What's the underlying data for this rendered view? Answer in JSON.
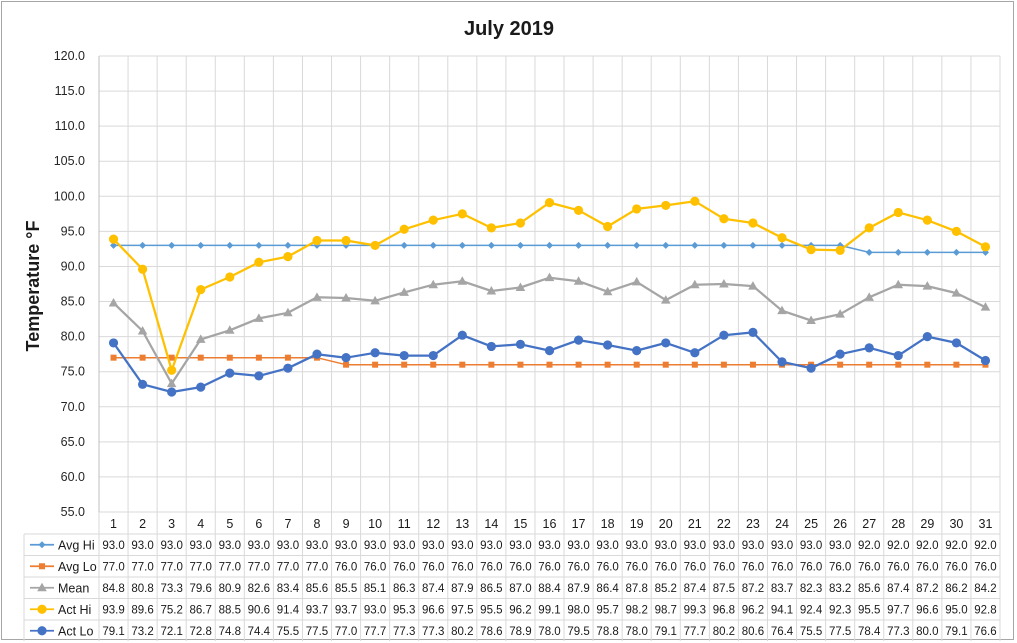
{
  "chart_data": {
    "type": "line",
    "title": "July 2019",
    "ylabel": "Temperature °F",
    "ylim": [
      55.0,
      120.0
    ],
    "yticks": [
      "55.0",
      "60.0",
      "65.0",
      "70.0",
      "75.0",
      "80.0",
      "85.0",
      "90.0",
      "95.0",
      "100.0",
      "105.0",
      "110.0",
      "115.0",
      "120.0"
    ],
    "categories": [
      "1",
      "2",
      "3",
      "4",
      "5",
      "6",
      "7",
      "8",
      "9",
      "10",
      "11",
      "12",
      "13",
      "14",
      "15",
      "16",
      "17",
      "18",
      "19",
      "20",
      "21",
      "22",
      "23",
      "24",
      "25",
      "26",
      "27",
      "28",
      "29",
      "30",
      "31"
    ],
    "grid": true,
    "data_table": true,
    "series": [
      {
        "name": "Avg Hi",
        "color": "#5b9bd5",
        "marker": "diamond",
        "values": [
          93.0,
          93.0,
          93.0,
          93.0,
          93.0,
          93.0,
          93.0,
          93.0,
          93.0,
          93.0,
          93.0,
          93.0,
          93.0,
          93.0,
          93.0,
          93.0,
          93.0,
          93.0,
          93.0,
          93.0,
          93.0,
          93.0,
          93.0,
          93.0,
          93.0,
          93.0,
          92.0,
          92.0,
          92.0,
          92.0,
          92.0
        ]
      },
      {
        "name": "Avg Lo",
        "color": "#ed7d31",
        "marker": "square",
        "values": [
          77.0,
          77.0,
          77.0,
          77.0,
          77.0,
          77.0,
          77.0,
          77.0,
          76.0,
          76.0,
          76.0,
          76.0,
          76.0,
          76.0,
          76.0,
          76.0,
          76.0,
          76.0,
          76.0,
          76.0,
          76.0,
          76.0,
          76.0,
          76.0,
          76.0,
          76.0,
          76.0,
          76.0,
          76.0,
          76.0,
          76.0
        ]
      },
      {
        "name": "Mean",
        "color": "#a5a5a5",
        "marker": "triangle",
        "values": [
          84.8,
          80.8,
          73.3,
          79.6,
          80.9,
          82.6,
          83.4,
          85.6,
          85.5,
          85.1,
          86.3,
          87.4,
          87.9,
          86.5,
          87.0,
          88.4,
          87.9,
          86.4,
          87.8,
          85.2,
          87.4,
          87.5,
          87.2,
          83.7,
          82.3,
          83.2,
          85.6,
          87.4,
          87.2,
          86.2,
          84.2
        ]
      },
      {
        "name": "Act Hi",
        "color": "#ffc000",
        "marker": "circle",
        "values": [
          93.9,
          89.6,
          75.2,
          86.7,
          88.5,
          90.6,
          91.4,
          93.7,
          93.7,
          93.0,
          95.3,
          96.6,
          97.5,
          95.5,
          96.2,
          99.1,
          98.0,
          95.7,
          98.2,
          98.7,
          99.3,
          96.8,
          96.2,
          94.1,
          92.4,
          92.3,
          95.5,
          97.7,
          96.6,
          95.0,
          92.8
        ]
      },
      {
        "name": "Act Lo",
        "color": "#4472c4",
        "marker": "circle",
        "values": [
          79.1,
          73.2,
          72.1,
          72.8,
          74.8,
          74.4,
          75.5,
          77.5,
          77.0,
          77.7,
          77.3,
          77.3,
          80.2,
          78.6,
          78.9,
          78.0,
          79.5,
          78.8,
          78.0,
          79.1,
          77.7,
          80.2,
          80.6,
          76.4,
          75.5,
          77.5,
          78.4,
          77.3,
          80.0,
          79.1,
          76.6
        ]
      }
    ]
  }
}
